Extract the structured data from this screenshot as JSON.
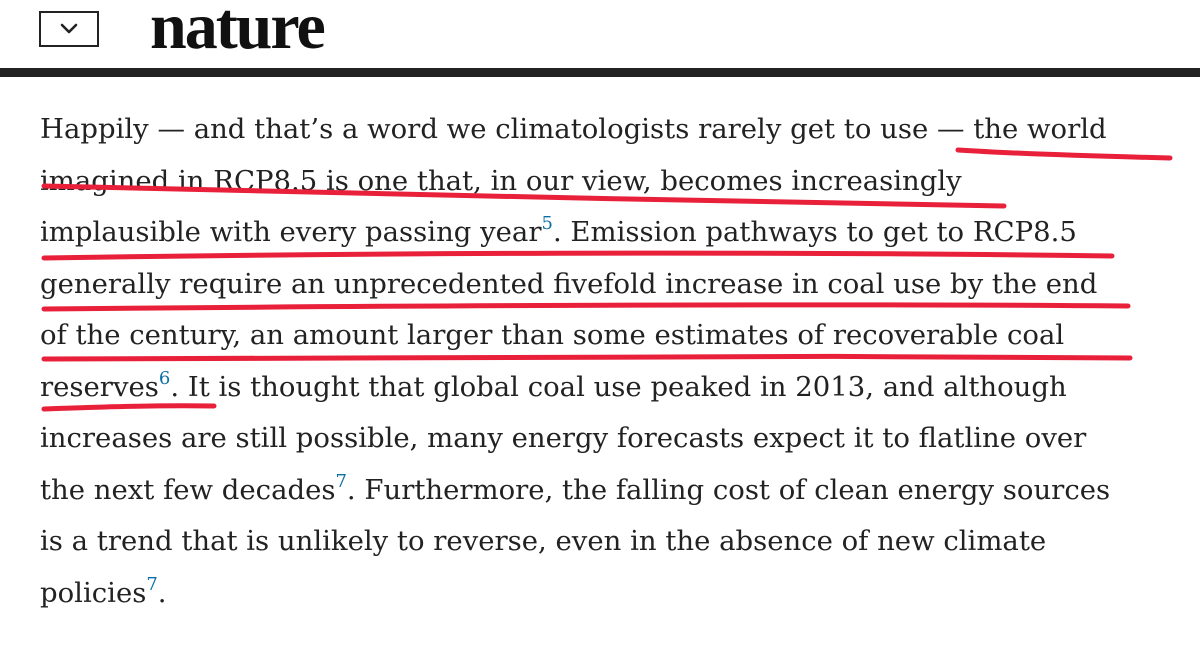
{
  "header": {
    "logo": "nature",
    "menu_icon": "chevron-down-icon"
  },
  "article": {
    "lines": [
      {
        "text": "Happily — and that’s a word we climatologists rarely get to use — the world"
      },
      {
        "text": "imagined in RCP8.5 is one that, in our view, becomes increasingly"
      },
      {
        "text": "implausible with every passing year",
        "ref": "5",
        "after": ". Emission pathways to get to RCP8.5"
      },
      {
        "text": "generally require an unprecedented fivefold increase in coal use by the end"
      },
      {
        "text": "of the century, an amount larger than some estimates of recoverable coal"
      },
      {
        "text": "reserves",
        "ref": "6",
        "after": ". It is thought that global coal use peaked in 2013, and although"
      },
      {
        "text": "increases are still possible, many energy forecasts expect it to flatline over"
      },
      {
        "text": "the next few decades",
        "ref": "7",
        "after": ". Furthermore, the falling cost of clean energy sources"
      },
      {
        "text": "is a trend that is unlikely to reverse, even in the absence of new climate"
      },
      {
        "text": "policies",
        "ref": "7",
        "after": "."
      }
    ]
  },
  "annotations": {
    "color": "#e8203a",
    "style": "hand-drawn underline"
  }
}
